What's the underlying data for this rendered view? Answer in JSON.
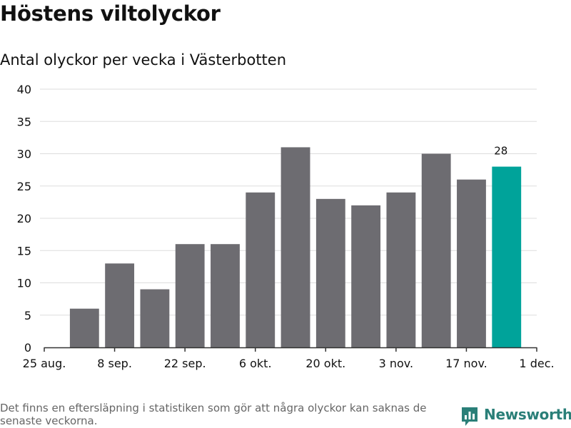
{
  "title": "Höstens viltolyckor",
  "subtitle": "Antal olyckor per vecka i Västerbotten",
  "note": "Det finns en eftersläpning i statistiken som gör att några olyckor kan saknas de senaste veckorna.",
  "brand": {
    "name": "Newsworthy",
    "logo_icon": "bar-chart-icon"
  },
  "colors": {
    "bar": "#6d6c71",
    "highlight": "#00a39a",
    "grid": "#dddddd",
    "axis": "#333333",
    "text": "#111111"
  },
  "chart_data": {
    "type": "bar",
    "xlabel": "",
    "ylabel": "",
    "ylim": [
      0,
      40
    ],
    "yticks": [
      0,
      5,
      10,
      15,
      20,
      25,
      30,
      35,
      40
    ],
    "x_range": [
      "2019-08-25",
      "2019-12-01"
    ],
    "xticks": [
      {
        "date": "2019-08-25",
        "label": "25 aug."
      },
      {
        "date": "2019-09-08",
        "label": "8 sep."
      },
      {
        "date": "2019-09-22",
        "label": "22 sep."
      },
      {
        "date": "2019-10-06",
        "label": "6 okt."
      },
      {
        "date": "2019-10-20",
        "label": "20 okt."
      },
      {
        "date": "2019-11-03",
        "label": "3 nov."
      },
      {
        "date": "2019-11-17",
        "label": "17 nov."
      },
      {
        "date": "2019-12-01",
        "label": "1 dec."
      }
    ],
    "grid": true,
    "bars": [
      {
        "date": "2019-09-02",
        "value": 6
      },
      {
        "date": "2019-09-09",
        "value": 13
      },
      {
        "date": "2019-09-16",
        "value": 9
      },
      {
        "date": "2019-09-23",
        "value": 16
      },
      {
        "date": "2019-09-30",
        "value": 16
      },
      {
        "date": "2019-10-07",
        "value": 24
      },
      {
        "date": "2019-10-14",
        "value": 31
      },
      {
        "date": "2019-10-21",
        "value": 23
      },
      {
        "date": "2019-10-28",
        "value": 22
      },
      {
        "date": "2019-11-04",
        "value": 24
      },
      {
        "date": "2019-11-11",
        "value": 30
      },
      {
        "date": "2019-11-18",
        "value": 26
      },
      {
        "date": "2019-11-25",
        "value": 28,
        "highlight": true,
        "label": "28"
      }
    ]
  }
}
